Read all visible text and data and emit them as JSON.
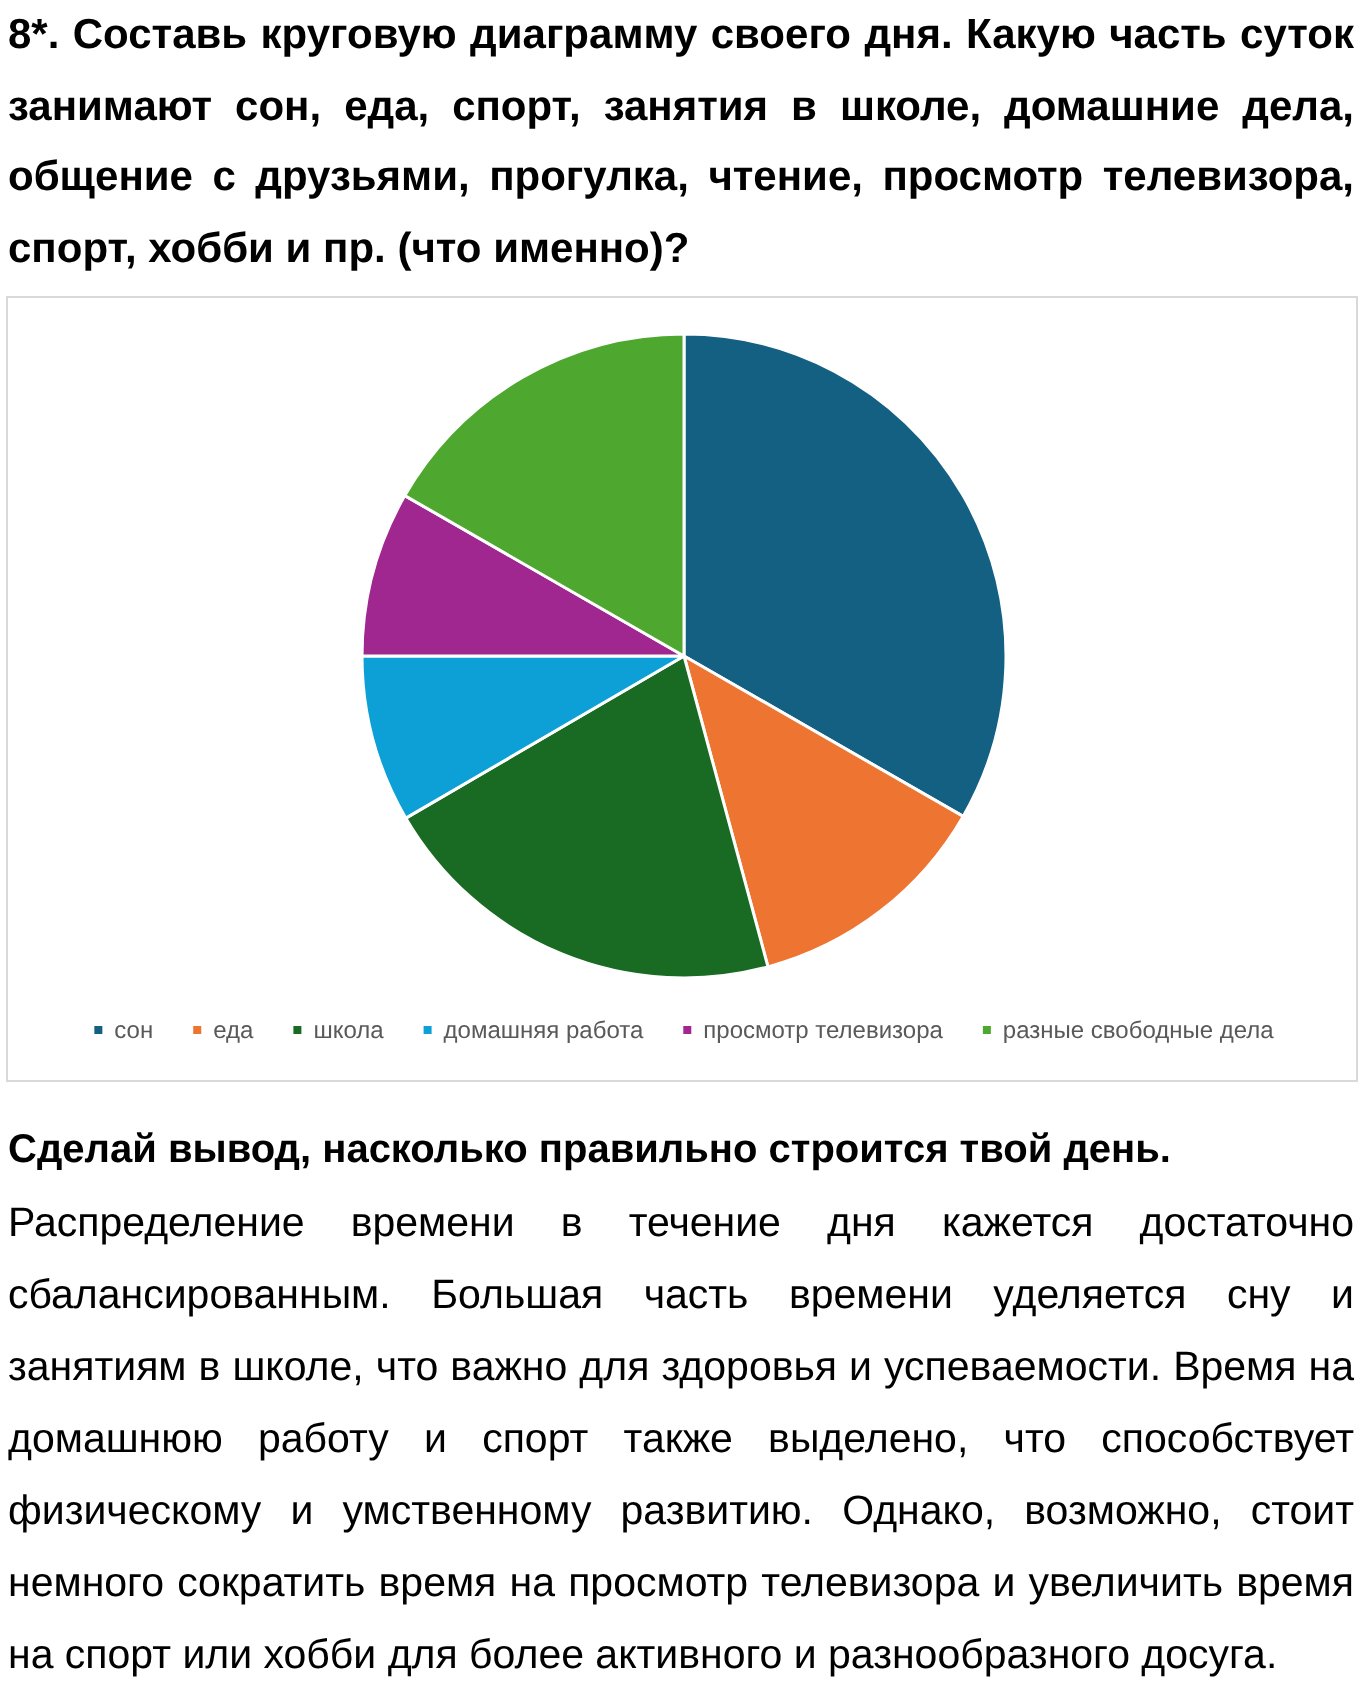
{
  "chart_data": {
    "type": "pie",
    "title": "8*. Составь круговую диаграмму своего дня. Какую часть суток занимают сон, еда, спорт, занятия в школе, домашние дела, общение с друзьями, прогулка, чтение, просмотр телевизора, спорт, хобби и пр. (что именно)?",
    "categories": [
      "сон",
      "еда",
      "школа",
      "домашняя работа",
      "просмотр телевизора",
      "разные свободные дела"
    ],
    "values": [
      33.3,
      12.5,
      20.8,
      8.4,
      8.3,
      16.7
    ],
    "colors": [
      "#136083",
      "#ee7431",
      "#196b24",
      "#0ca0d6",
      "#a02690",
      "#4ea72e"
    ],
    "legend": "bottom",
    "annotations": [
      "Сделай вывод, насколько правильно строится твой день.",
      "Распределение времени в течение дня кажется достаточно сбалансированным. Большая часть времени уделяется сну и занятиям в школе, что важно для здоровья и успеваемости. Время на домашнюю работу и спорт также выделено, что способствует физическому и умственному развитию. Однако, возможно, стоит немного сократить время на просмотр телевизора и увеличить время на спорт или хобби для более активного и разнообразного досуга."
    ]
  }
}
